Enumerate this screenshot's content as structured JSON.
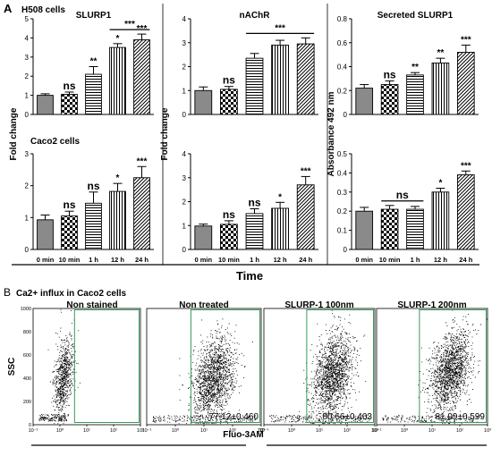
{
  "panel_A": {
    "letter": "A",
    "subtitle_top": "H508 cells",
    "subtitle_bottom": "Caco2 cells",
    "y_label_left": "Fold change",
    "y_label_middle": "Fold change",
    "y_label_right": "Absorbance 492 nm",
    "x_label": "Time",
    "categories": [
      "0 min",
      "10 min",
      "1 h",
      "12 h",
      "24 h"
    ]
  },
  "panel_B": {
    "letter": "B",
    "title": "Ca2+ influx in Caco2 cells",
    "y_label": "SSC",
    "x_label": "Fluo-3AM",
    "y_ticks": [
      "1000",
      "800",
      "600",
      "400",
      "200",
      "0"
    ],
    "x_ticks": [
      "10⁻¹",
      "10⁰",
      "10¹",
      "10²",
      "10³"
    ],
    "plus_minus_mark": "±",
    "plots": [
      {
        "title": "Non stained",
        "gate_text": ""
      },
      {
        "title": "Non treated",
        "gate_text": "77.12±0.460"
      },
      {
        "title": "SLURP-1 100nm",
        "gate_text": "80.66±0.403"
      },
      {
        "title": "SLURP-1 200nm",
        "gate_text": "81.99±0.599"
      }
    ]
  },
  "colors": {
    "bar_dark": "#8a8a8a",
    "gate_green": "#3a9a5a",
    "ink": "#000000"
  },
  "chart_data": [
    {
      "type": "bar",
      "title": "SLURP1",
      "categories": [
        "0 min",
        "10 min",
        "1 h",
        "12 h",
        "24 h"
      ],
      "values": [
        1.0,
        1.05,
        2.1,
        3.5,
        3.9
      ],
      "errors": [
        0.08,
        0.12,
        0.4,
        0.2,
        0.3
      ],
      "significance": [
        "",
        "ns",
        "**",
        "*",
        "***"
      ],
      "ylabel": "Fold change",
      "ylim": [
        0,
        5
      ],
      "yticks": [
        "0",
        "1",
        "2",
        "3",
        "4",
        "5"
      ],
      "bracket": {
        "from": 3,
        "to": 4,
        "label": "***"
      }
    },
    {
      "type": "bar",
      "title": "nAChR",
      "categories": [
        "0 min",
        "10 min",
        "1 h",
        "12 h",
        "24 h"
      ],
      "values": [
        1.0,
        1.05,
        2.35,
        2.9,
        2.95
      ],
      "errors": [
        0.15,
        0.12,
        0.2,
        0.2,
        0.25
      ],
      "significance": [
        "",
        "ns",
        "",
        "",
        ""
      ],
      "ylim": [
        0,
        4
      ],
      "yticks": [
        "0",
        "1",
        "2",
        "3",
        "4"
      ],
      "bracket": {
        "from": 2,
        "to": 4,
        "label": "***"
      }
    },
    {
      "type": "bar",
      "title": "Secreted SLURP1",
      "categories": [
        "0 min",
        "10 min",
        "1 h",
        "12 h",
        "24 h"
      ],
      "values": [
        0.22,
        0.25,
        0.33,
        0.43,
        0.52
      ],
      "errors": [
        0.03,
        0.03,
        0.02,
        0.04,
        0.06
      ],
      "significance": [
        "",
        "ns",
        "**",
        "**",
        "***"
      ],
      "ylabel": "Absorbance 492 nm",
      "ylim": [
        0,
        0.8
      ],
      "yticks": [
        "0",
        "0.2",
        "0.4",
        "0.6",
        "0.8"
      ]
    },
    {
      "type": "bar",
      "title": "",
      "categories": [
        "0 min",
        "10 min",
        "1 h",
        "12 h",
        "24 h"
      ],
      "values": [
        0.93,
        1.05,
        1.45,
        1.82,
        2.25
      ],
      "errors": [
        0.15,
        0.15,
        0.35,
        0.25,
        0.35
      ],
      "significance": [
        "",
        "ns",
        "ns",
        "*",
        "***"
      ],
      "ylabel": "Fold change",
      "ylim": [
        0,
        3
      ],
      "yticks": [
        "0",
        "1",
        "2",
        "3"
      ]
    },
    {
      "type": "bar",
      "title": "",
      "categories": [
        "0 min",
        "10 min",
        "1 h",
        "12 h",
        "24 h"
      ],
      "values": [
        0.98,
        1.05,
        1.5,
        1.72,
        2.7
      ],
      "errors": [
        0.08,
        0.15,
        0.2,
        0.25,
        0.35
      ],
      "significance": [
        "",
        "ns",
        "ns",
        "*",
        "***"
      ],
      "ylim": [
        0,
        4
      ],
      "yticks": [
        "0",
        "1",
        "2",
        "3",
        "4"
      ]
    },
    {
      "type": "bar",
      "title": "",
      "categories": [
        "0 min",
        "10 min",
        "1 h",
        "12 h",
        "24 h"
      ],
      "values": [
        0.2,
        0.21,
        0.21,
        0.3,
        0.39
      ],
      "errors": [
        0.02,
        0.02,
        0.015,
        0.02,
        0.02
      ],
      "significance": [
        "",
        "",
        "",
        "*",
        "***"
      ],
      "ylim": [
        0,
        0.5
      ],
      "yticks": [
        "0",
        "0.1",
        "0.2",
        "0.3",
        "0.4",
        "0.5"
      ],
      "bracket": {
        "from": 1,
        "to": 2,
        "label": "ns"
      }
    },
    {
      "type": "scatter",
      "title": "Non stained",
      "xlabel": "Fluo-3AM",
      "ylabel": "SSC",
      "x_scale": "log",
      "xlim": [
        0.1,
        1000
      ],
      "ylim": [
        0,
        1000
      ]
    },
    {
      "type": "scatter",
      "title": "Non treated",
      "gate_percent": "77.12±0.460",
      "x_scale": "log",
      "xlim": [
        0.1,
        1000
      ],
      "ylim": [
        0,
        1000
      ]
    },
    {
      "type": "scatter",
      "title": "SLURP-1 100nm",
      "gate_percent": "80.66±0.403",
      "x_scale": "log",
      "xlim": [
        0.1,
        1000
      ],
      "ylim": [
        0,
        1000
      ]
    },
    {
      "type": "scatter",
      "title": "SLURP-1 200nm",
      "gate_percent": "81.99±0.599",
      "x_scale": "log",
      "xlim": [
        0.1,
        1000
      ],
      "ylim": [
        0,
        1000
      ]
    }
  ]
}
